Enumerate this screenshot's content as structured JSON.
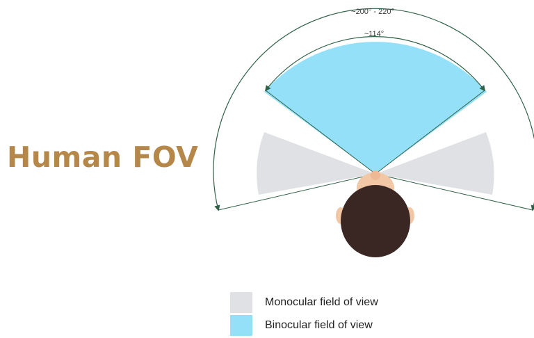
{
  "title": "Human FOV",
  "arc_labels": {
    "outer": "~200° - 220°",
    "inner": "~114°"
  },
  "legend": [
    {
      "label": "Monocular field of view",
      "color": "#e0e1e5"
    },
    {
      "label": "Binocular field of view",
      "color": "#93e0f8"
    }
  ],
  "colors": {
    "title": "#b5884a",
    "monocular": "#e0e1e5",
    "binocular": "#93e0f8",
    "arc_line": "#2e6148",
    "hair": "#3a2622",
    "skin": "#f2c7a6"
  }
}
